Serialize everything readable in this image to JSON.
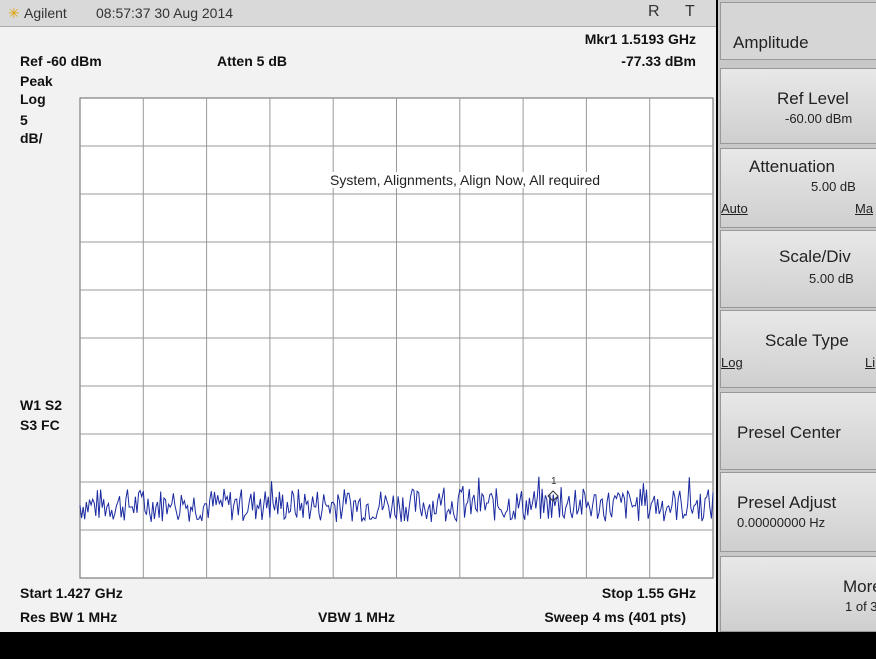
{
  "header": {
    "brand": "Agilent",
    "datetime": "08:57:37  30 Aug 2014",
    "flag_r": "R",
    "flag_t": "T"
  },
  "marker": {
    "freq": "Mkr1  1.5193 GHz",
    "level": "-77.33 dBm"
  },
  "settings": {
    "ref": "Ref -60 dBm",
    "atten": "Atten 5 dB",
    "detector": "Peak",
    "scale": "Log",
    "div_value": "5",
    "div_unit": "dB/",
    "trace1": "W1 S2",
    "trace2": "S3 FC"
  },
  "message": "System, Alignments, Align Now, All required",
  "footer": {
    "start": "Start 1.427 GHz",
    "stop": "Stop 1.55 GHz",
    "rbw": "Res BW 1 MHz",
    "vbw": "VBW 1 MHz",
    "sweep": "Sweep 4 ms (401 pts)"
  },
  "menu": {
    "title": "Amplitude",
    "keys": [
      {
        "label": "Ref Level",
        "value": "-60.00 dBm"
      },
      {
        "label": "Attenuation",
        "value": "5.00 dB",
        "left": "Auto",
        "right": "Ma"
      },
      {
        "label": "Scale/Div",
        "value": "5.00 dB"
      },
      {
        "label": "Scale Type",
        "left": "Log",
        "right": "Li"
      },
      {
        "label": "Presel Center"
      },
      {
        "label": "Presel Adjust",
        "value": "0.00000000  Hz"
      },
      {
        "label": "More",
        "value": "1 of 3"
      }
    ]
  }
}
